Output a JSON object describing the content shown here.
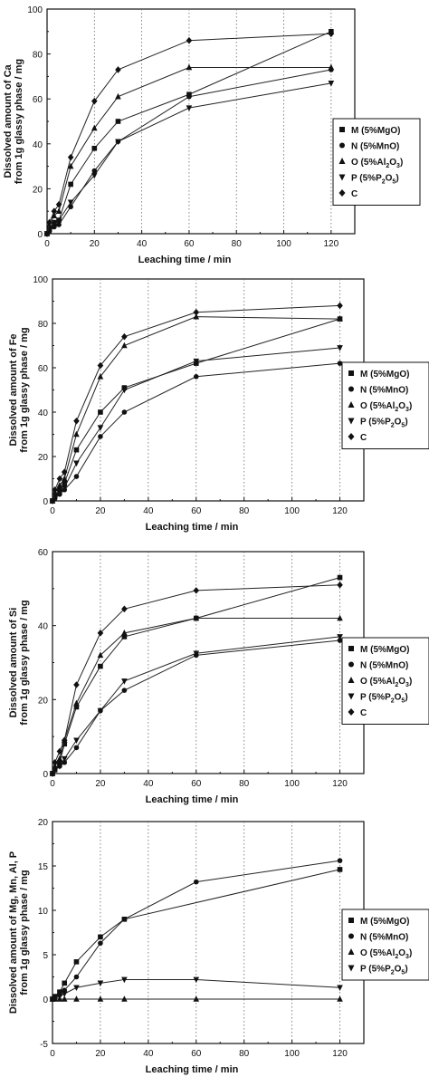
{
  "chart_data": [
    {
      "type": "line",
      "xlabel": "Leaching time / min",
      "ylabel": [
        "Dissolved amount of Ca",
        "from 1g glassy phase / mg"
      ],
      "xlim": [
        0,
        130
      ],
      "ylim": [
        0,
        100
      ],
      "xticks": [
        0,
        20,
        40,
        60,
        80,
        100,
        120
      ],
      "yticks": [
        0,
        20,
        40,
        60,
        80,
        100
      ],
      "grid": "vertical dotted",
      "legend_position": "right",
      "series": [
        {
          "name": "M (5%MgO)",
          "marker": "square",
          "x": [
            0,
            1,
            3,
            5,
            10,
            20,
            30,
            60,
            120
          ],
          "y": [
            0,
            2,
            4,
            6,
            22,
            38,
            50,
            62,
            90
          ]
        },
        {
          "name": "N (5%MnO)",
          "marker": "circle",
          "x": [
            0,
            1,
            3,
            5,
            10,
            20,
            30,
            60,
            120
          ],
          "y": [
            0,
            1,
            3,
            4,
            12,
            28,
            41,
            61,
            73
          ]
        },
        {
          "name": "O (5%Al2O3)",
          "marker": "triangle-up",
          "x": [
            0,
            1,
            3,
            5,
            10,
            20,
            30,
            60,
            120
          ],
          "y": [
            0,
            4,
            8,
            10,
            30,
            47,
            61,
            74,
            74
          ]
        },
        {
          "name": "P (5%P2O5)",
          "marker": "triangle-down",
          "x": [
            0,
            1,
            3,
            5,
            10,
            20,
            30,
            60,
            120
          ],
          "y": [
            0,
            2,
            5,
            6,
            14,
            26,
            41,
            56,
            67
          ]
        },
        {
          "name": "C",
          "marker": "diamond",
          "x": [
            0,
            1,
            3,
            5,
            10,
            20,
            30,
            60,
            120
          ],
          "y": [
            0,
            5,
            10,
            13,
            34,
            59,
            73,
            86,
            89
          ]
        }
      ]
    },
    {
      "type": "line",
      "xlabel": "Leaching time / min",
      "ylabel": [
        "Dissolved amount of Fe",
        "from 1g glassy phase / mg"
      ],
      "xlim": [
        0,
        130
      ],
      "ylim": [
        0,
        100
      ],
      "xticks": [
        0,
        20,
        40,
        60,
        80,
        100,
        120
      ],
      "yticks": [
        0,
        20,
        40,
        60,
        80,
        100
      ],
      "grid": "vertical dotted",
      "legend_position": "right",
      "series": [
        {
          "name": "M (5%MgO)",
          "marker": "square",
          "x": [
            0,
            1,
            3,
            5,
            10,
            20,
            30,
            60,
            120
          ],
          "y": [
            0,
            2,
            5,
            8,
            23,
            40,
            51,
            62,
            82
          ]
        },
        {
          "name": "N (5%MnO)",
          "marker": "circle",
          "x": [
            0,
            1,
            3,
            5,
            10,
            20,
            30,
            60,
            120
          ],
          "y": [
            0,
            1,
            3,
            5,
            11,
            29,
            40,
            56,
            62
          ]
        },
        {
          "name": "O (5%Al2O3)",
          "marker": "triangle-up",
          "x": [
            0,
            1,
            3,
            5,
            10,
            20,
            30,
            60,
            120
          ],
          "y": [
            0,
            4,
            7,
            10,
            30,
            56,
            70,
            83,
            82
          ]
        },
        {
          "name": "P (5%P2O5)",
          "marker": "triangle-down",
          "x": [
            0,
            1,
            3,
            5,
            10,
            20,
            30,
            60,
            120
          ],
          "y": [
            0,
            2,
            4,
            6,
            17,
            33,
            50,
            63,
            69
          ]
        },
        {
          "name": "C",
          "marker": "diamond",
          "x": [
            0,
            1,
            3,
            5,
            10,
            20,
            30,
            60,
            120
          ],
          "y": [
            0,
            5,
            10,
            13,
            36,
            61,
            74,
            85,
            88
          ]
        }
      ]
    },
    {
      "type": "line",
      "xlabel": "Leaching time / min",
      "ylabel": [
        "Dissolved amount of Si",
        "from 1g glassy phase / mg"
      ],
      "xlim": [
        0,
        130
      ],
      "ylim": [
        0,
        60
      ],
      "xticks": [
        0,
        20,
        40,
        60,
        80,
        100,
        120
      ],
      "yticks": [
        0,
        20,
        40,
        60
      ],
      "grid": "vertical dotted",
      "legend_position": "right",
      "series": [
        {
          "name": "M (5%MgO)",
          "marker": "square",
          "x": [
            0,
            1,
            3,
            5,
            10,
            20,
            30,
            60,
            120
          ],
          "y": [
            0,
            1,
            3,
            8,
            18,
            29,
            37,
            42,
            53
          ]
        },
        {
          "name": "N (5%MnO)",
          "marker": "circle",
          "x": [
            0,
            1,
            3,
            5,
            10,
            20,
            30,
            60,
            120
          ],
          "y": [
            0,
            1,
            2,
            3,
            7,
            17,
            22.5,
            32,
            36
          ]
        },
        {
          "name": "O (5%Al2O3)",
          "marker": "triangle-up",
          "x": [
            0,
            1,
            3,
            5,
            10,
            20,
            30,
            60,
            120
          ],
          "y": [
            0,
            2,
            4,
            9,
            19,
            32,
            38,
            42,
            42
          ]
        },
        {
          "name": "P (5%P2O5)",
          "marker": "triangle-down",
          "x": [
            0,
            1,
            3,
            5,
            10,
            20,
            30,
            60,
            120
          ],
          "y": [
            0,
            1,
            2,
            4,
            9,
            17,
            25,
            32.5,
            37
          ]
        },
        {
          "name": "C",
          "marker": "diamond",
          "x": [
            0,
            1,
            3,
            5,
            10,
            20,
            30,
            60,
            120
          ],
          "y": [
            0,
            3,
            6,
            9,
            24,
            38,
            44.5,
            49.5,
            51
          ]
        }
      ]
    },
    {
      "type": "line",
      "xlabel": "Leaching time / min",
      "ylabel": [
        "Dissolved amount of Mg, Mn, Al, P",
        "from 1g glassy phase / mg"
      ],
      "xlim": [
        0,
        130
      ],
      "ylim": [
        -5,
        20
      ],
      "xticks": [
        0,
        20,
        40,
        60,
        80,
        100,
        120
      ],
      "yticks": [
        -5,
        0,
        5,
        10,
        15,
        20
      ],
      "grid": "vertical dotted",
      "legend_position": "right",
      "series": [
        {
          "name": "M (5%MgO)",
          "marker": "square",
          "x": [
            0,
            1,
            3,
            5,
            10,
            20,
            30,
            120
          ],
          "y": [
            0,
            0.3,
            0.8,
            1.8,
            4.2,
            7,
            9,
            14.6
          ]
        },
        {
          "name": "N (5%MnO)",
          "marker": "circle",
          "x": [
            0,
            1,
            3,
            5,
            10,
            20,
            30,
            60,
            120
          ],
          "y": [
            0,
            0.2,
            0.5,
            1,
            2.5,
            6.3,
            9,
            13.2,
            15.6
          ]
        },
        {
          "name": "O (5%Al2O3)",
          "marker": "triangle-up",
          "x": [
            0,
            1,
            3,
            5,
            10,
            20,
            30,
            60,
            120
          ],
          "y": [
            0,
            0,
            0,
            0,
            0,
            0,
            0,
            0,
            0
          ]
        },
        {
          "name": "P (5%P2O5)",
          "marker": "triangle-down",
          "x": [
            0,
            1,
            3,
            5,
            10,
            20,
            30,
            60,
            120
          ],
          "y": [
            0,
            0.1,
            0.3,
            0.6,
            1.3,
            1.8,
            2.2,
            2.2,
            1.3
          ]
        }
      ]
    }
  ]
}
